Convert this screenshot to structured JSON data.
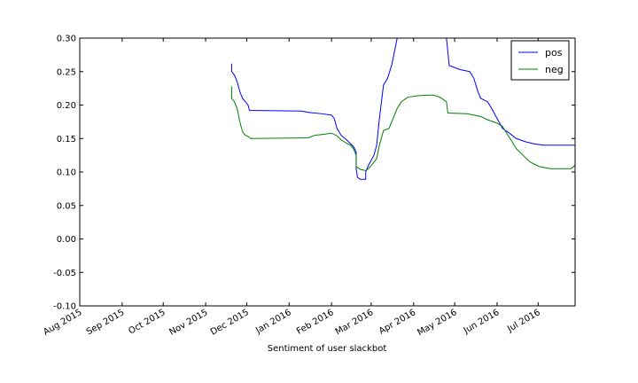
{
  "chart_data": {
    "type": "line",
    "xlabel": "Sentiment of user slackbot",
    "ylabel": "",
    "xlim": [
      "2015-08-01",
      "2016-07-28"
    ],
    "ylim": [
      -0.1,
      0.3
    ],
    "x_ticks": [
      {
        "date": "2015-08-01",
        "label": "Aug 2015"
      },
      {
        "date": "2015-09-01",
        "label": "Sep 2015"
      },
      {
        "date": "2015-10-01",
        "label": "Oct 2015"
      },
      {
        "date": "2015-11-01",
        "label": "Nov 2015"
      },
      {
        "date": "2015-12-01",
        "label": "Dec 2015"
      },
      {
        "date": "2016-01-01",
        "label": "Jan 2016"
      },
      {
        "date": "2016-02-01",
        "label": "Feb 2016"
      },
      {
        "date": "2016-03-01",
        "label": "Mar 2016"
      },
      {
        "date": "2016-04-01",
        "label": "Apr 2016"
      },
      {
        "date": "2016-05-01",
        "label": "May 2016"
      },
      {
        "date": "2016-06-01",
        "label": "Jun 2016"
      },
      {
        "date": "2016-07-01",
        "label": "Jul 2016"
      }
    ],
    "y_ticks": [
      {
        "value": 0.3,
        "label": "0.30"
      },
      {
        "value": 0.25,
        "label": "0.25"
      },
      {
        "value": 0.2,
        "label": "0.20"
      },
      {
        "value": 0.15,
        "label": "0.15"
      },
      {
        "value": 0.1,
        "label": "0.10"
      },
      {
        "value": 0.05,
        "label": "0.05"
      },
      {
        "value": 0.0,
        "label": "0.00"
      },
      {
        "value": -0.05,
        "label": "-0.05"
      },
      {
        "value": -0.1,
        "label": "-0.10"
      }
    ],
    "grid": false,
    "legend": "top-right",
    "series": [
      {
        "name": "pos",
        "color": "#0000ff",
        "points": [
          [
            "2015-11-20",
            0.262
          ],
          [
            "2015-11-20",
            0.25
          ],
          [
            "2015-11-22",
            0.245
          ],
          [
            "2015-11-24",
            0.235
          ],
          [
            "2015-11-26",
            0.22
          ],
          [
            "2015-11-28",
            0.21
          ],
          [
            "2015-11-30",
            0.205
          ],
          [
            "2015-12-02",
            0.2
          ],
          [
            "2015-12-03",
            0.192
          ],
          [
            "2016-01-10",
            0.191
          ],
          [
            "2016-01-15",
            0.189
          ],
          [
            "2016-01-25",
            0.187
          ],
          [
            "2016-02-01",
            0.185
          ],
          [
            "2016-02-03",
            0.18
          ],
          [
            "2016-02-05",
            0.165
          ],
          [
            "2016-02-08",
            0.155
          ],
          [
            "2016-02-12",
            0.148
          ],
          [
            "2016-02-15",
            0.142
          ],
          [
            "2016-02-17",
            0.138
          ],
          [
            "2016-02-19",
            0.13
          ],
          [
            "2016-02-19",
            0.105
          ],
          [
            "2016-02-20",
            0.092
          ],
          [
            "2016-02-22",
            0.089
          ],
          [
            "2016-02-26",
            0.089
          ],
          [
            "2016-02-26",
            0.1
          ],
          [
            "2016-02-28",
            0.11
          ],
          [
            "2016-03-03",
            0.125
          ],
          [
            "2016-03-05",
            0.14
          ],
          [
            "2016-03-07",
            0.18
          ],
          [
            "2016-03-10",
            0.23
          ],
          [
            "2016-03-13",
            0.24
          ],
          [
            "2016-03-16",
            0.26
          ],
          [
            "2016-03-18",
            0.28
          ],
          [
            "2016-03-20",
            0.3
          ],
          [
            "2016-04-25",
            0.3
          ],
          [
            "2016-04-27",
            0.259
          ],
          [
            "2016-05-05",
            0.253
          ],
          [
            "2016-05-12",
            0.25
          ],
          [
            "2016-05-15",
            0.24
          ],
          [
            "2016-05-18",
            0.22
          ],
          [
            "2016-05-20",
            0.21
          ],
          [
            "2016-05-25",
            0.205
          ],
          [
            "2016-05-28",
            0.195
          ],
          [
            "2016-06-01",
            0.18
          ],
          [
            "2016-06-05",
            0.165
          ],
          [
            "2016-06-10",
            0.158
          ],
          [
            "2016-06-15",
            0.15
          ],
          [
            "2016-06-22",
            0.145
          ],
          [
            "2016-06-28",
            0.142
          ],
          [
            "2016-07-05",
            0.14
          ],
          [
            "2016-07-25",
            0.14
          ],
          [
            "2016-07-28",
            0.14
          ]
        ]
      },
      {
        "name": "neg",
        "color": "#008000",
        "points": [
          [
            "2015-11-20",
            0.228
          ],
          [
            "2015-11-20",
            0.21
          ],
          [
            "2015-11-22",
            0.205
          ],
          [
            "2015-11-24",
            0.195
          ],
          [
            "2015-11-26",
            0.175
          ],
          [
            "2015-11-28",
            0.16
          ],
          [
            "2015-11-30",
            0.155
          ],
          [
            "2015-12-02",
            0.153
          ],
          [
            "2015-12-04",
            0.15
          ],
          [
            "2016-01-15",
            0.151
          ],
          [
            "2016-01-20",
            0.155
          ],
          [
            "2016-01-25",
            0.156
          ],
          [
            "2016-02-01",
            0.158
          ],
          [
            "2016-02-05",
            0.154
          ],
          [
            "2016-02-08",
            0.148
          ],
          [
            "2016-02-12",
            0.143
          ],
          [
            "2016-02-15",
            0.14
          ],
          [
            "2016-02-17",
            0.135
          ],
          [
            "2016-02-19",
            0.125
          ],
          [
            "2016-02-19",
            0.108
          ],
          [
            "2016-02-22",
            0.104
          ],
          [
            "2016-02-26",
            0.102
          ],
          [
            "2016-02-28",
            0.105
          ],
          [
            "2016-03-02",
            0.112
          ],
          [
            "2016-03-05",
            0.12
          ],
          [
            "2016-03-07",
            0.14
          ],
          [
            "2016-03-10",
            0.162
          ],
          [
            "2016-03-14",
            0.165
          ],
          [
            "2016-03-17",
            0.18
          ],
          [
            "2016-03-20",
            0.195
          ],
          [
            "2016-03-23",
            0.205
          ],
          [
            "2016-03-28",
            0.212
          ],
          [
            "2016-04-05",
            0.214
          ],
          [
            "2016-04-15",
            0.215
          ],
          [
            "2016-04-20",
            0.212
          ],
          [
            "2016-04-25",
            0.205
          ],
          [
            "2016-04-26",
            0.188
          ],
          [
            "2016-05-10",
            0.187
          ],
          [
            "2016-05-20",
            0.183
          ],
          [
            "2016-05-25",
            0.178
          ],
          [
            "2016-06-01",
            0.173
          ],
          [
            "2016-06-05",
            0.168
          ],
          [
            "2016-06-08",
            0.158
          ],
          [
            "2016-06-12",
            0.145
          ],
          [
            "2016-06-15",
            0.135
          ],
          [
            "2016-06-20",
            0.125
          ],
          [
            "2016-06-25",
            0.115
          ],
          [
            "2016-07-02",
            0.108
          ],
          [
            "2016-07-10",
            0.105
          ],
          [
            "2016-07-25",
            0.105
          ],
          [
            "2016-07-28",
            0.11
          ]
        ]
      }
    ]
  }
}
